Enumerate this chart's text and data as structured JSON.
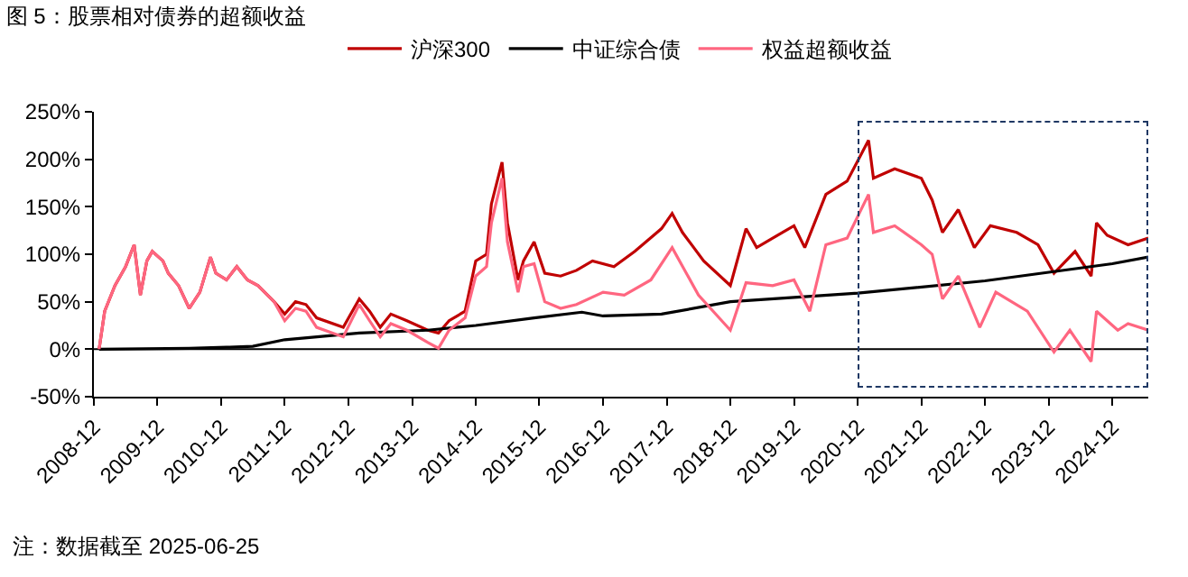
{
  "chart_data": {
    "type": "line",
    "title": "图 5：股票相对债券的超额收益",
    "annotations": [
      "注：数据截至 2025-06-25"
    ],
    "series": [
      {
        "name": "沪深300",
        "color": "#c00000",
        "x": [
          "2008-12-31",
          "2009-02",
          "2009-04",
          "2009-06",
          "2009-07-20",
          "2009-08-25",
          "2009-10",
          "2009-11",
          "2010-01",
          "2010-02",
          "2010-04",
          "2010-06",
          "2010-08",
          "2010-10",
          "2010-11",
          "2011-01",
          "2011-03",
          "2011-05",
          "2011-07",
          "2011-10",
          "2011-12",
          "2012-02",
          "2012-04",
          "2012-06",
          "2012-11",
          "2013-02",
          "2013-04",
          "2013-06",
          "2013-08",
          "2013-11",
          "2014-03",
          "2014-05",
          "2014-07",
          "2014-10",
          "2014-12",
          "2015-02",
          "2015-03",
          "2015-05",
          "2015-06",
          "2015-08",
          "2015-09",
          "2015-11",
          "2016-01",
          "2016-04",
          "2016-07",
          "2016-10",
          "2017-02",
          "2017-06",
          "2017-11",
          "2018-01",
          "2018-03",
          "2018-07",
          "2018-12",
          "2019-03",
          "2019-05",
          "2019-08",
          "2019-12",
          "2020-02",
          "2020-06",
          "2020-10",
          "2021-02",
          "2021-03",
          "2021-07",
          "2021-12",
          "2022-02",
          "2022-04",
          "2022-07",
          "2022-10",
          "2023-01",
          "2023-06",
          "2023-10",
          "2024-01",
          "2024-05",
          "2024-08",
          "2024-09",
          "2024-11",
          "2025-03",
          "2025-06-25"
        ],
        "values": [
          0,
          40,
          67,
          87,
          110,
          57,
          93,
          103,
          93,
          80,
          67,
          43,
          60,
          97,
          80,
          73,
          87,
          73,
          67,
          50,
          37,
          50,
          47,
          33,
          23,
          53,
          40,
          23,
          37,
          30,
          20,
          17,
          30,
          40,
          93,
          100,
          153,
          197,
          133,
          73,
          93,
          113,
          80,
          77,
          83,
          93,
          87,
          103,
          127,
          143,
          123,
          93,
          67,
          127,
          107,
          117,
          130,
          107,
          163,
          177,
          220,
          180,
          190,
          180,
          157,
          123,
          147,
          107,
          130,
          123,
          110,
          80,
          103,
          77,
          133,
          120,
          110,
          117
        ]
      },
      {
        "name": "中证综合债",
        "color": "#000000",
        "x": [
          "2008-12-31",
          "2010-06",
          "2011-01",
          "2011-06",
          "2011-12",
          "2013-02",
          "2014-03",
          "2014-12",
          "2015-11",
          "2016-08",
          "2016-12",
          "2017-11",
          "2018-12",
          "2020-12",
          "2022-12",
          "2024-12",
          "2025-06-25"
        ],
        "values": [
          0,
          1,
          2,
          3,
          10,
          17,
          20,
          25,
          33,
          39,
          35,
          37,
          50,
          59,
          72,
          90,
          97
        ]
      },
      {
        "name": "权益超额收益",
        "color": "#ff6680",
        "x": [
          "2008-12-31",
          "2009-02",
          "2009-04",
          "2009-06",
          "2009-07-20",
          "2009-08-25",
          "2009-10",
          "2009-11",
          "2010-01",
          "2010-02",
          "2010-04",
          "2010-06",
          "2010-08",
          "2010-10",
          "2010-11",
          "2011-01",
          "2011-03",
          "2011-05",
          "2011-07",
          "2011-10",
          "2011-12",
          "2012-02",
          "2012-04",
          "2012-06",
          "2012-11",
          "2013-02",
          "2013-04",
          "2013-06",
          "2013-08",
          "2013-11",
          "2014-03",
          "2014-05",
          "2014-07",
          "2014-10",
          "2014-12",
          "2015-02",
          "2015-03",
          "2015-05",
          "2015-06",
          "2015-08",
          "2015-09",
          "2015-11",
          "2016-01",
          "2016-04",
          "2016-07",
          "2016-12",
          "2017-04",
          "2017-09",
          "2018-01",
          "2018-06",
          "2018-12",
          "2019-03",
          "2019-08",
          "2019-12",
          "2020-03",
          "2020-06",
          "2020-10",
          "2021-02",
          "2021-03",
          "2021-07",
          "2021-12",
          "2022-02",
          "2022-04",
          "2022-07",
          "2022-11",
          "2023-02",
          "2023-08",
          "2024-01",
          "2024-04",
          "2024-08",
          "2024-09",
          "2025-01",
          "2025-03",
          "2025-06-25"
        ],
        "values": [
          0,
          40,
          67,
          87,
          110,
          57,
          93,
          103,
          93,
          80,
          67,
          43,
          60,
          97,
          80,
          73,
          87,
          73,
          67,
          50,
          30,
          43,
          40,
          23,
          13,
          47,
          30,
          13,
          27,
          20,
          7,
          1,
          20,
          33,
          77,
          87,
          133,
          180,
          113,
          60,
          87,
          90,
          50,
          43,
          47,
          60,
          57,
          73,
          107,
          57,
          20,
          70,
          67,
          73,
          40,
          110,
          117,
          163,
          123,
          130,
          110,
          100,
          53,
          77,
          23,
          60,
          40,
          -3,
          20,
          -13,
          40,
          20,
          27,
          20
        ]
      }
    ],
    "xlim": [
      "2008-12-01",
      "2025-06-25"
    ],
    "xticks": [
      "2008-12",
      "2009-12",
      "2010-12",
      "2011-12",
      "2012-12",
      "2013-12",
      "2014-12",
      "2015-12",
      "2016-12",
      "2017-12",
      "2018-12",
      "2019-12",
      "2020-12",
      "2021-12",
      "2022-12",
      "2023-12",
      "2024-12"
    ],
    "ylim": [
      -50,
      250
    ],
    "yticks": [
      {
        "value": -50,
        "label": "-50%"
      },
      {
        "value": 0,
        "label": "0%"
      },
      {
        "value": 50,
        "label": "50%"
      },
      {
        "value": 100,
        "label": "100%"
      },
      {
        "value": 150,
        "label": "150%"
      },
      {
        "value": 200,
        "label": "200%"
      },
      {
        "value": 250,
        "label": "250%"
      }
    ],
    "ref_lines": [
      {
        "axis": "y",
        "value": 0,
        "color": "#000000"
      }
    ],
    "legend": "top",
    "grid": false,
    "marker": "none",
    "line_style": "solid"
  }
}
